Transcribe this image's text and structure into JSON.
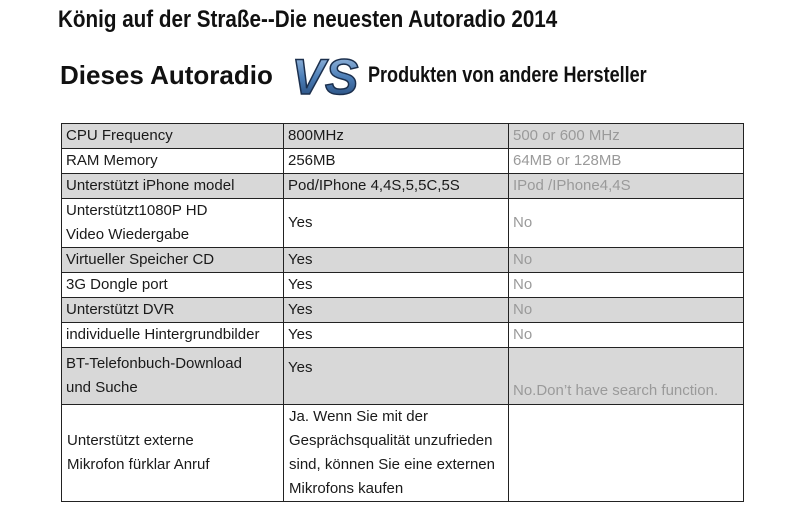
{
  "header": {
    "title": "König auf der Straße--Die neuesten Autoradio  2014",
    "left_label": "Dieses Autoradio",
    "vs_logo": "VS",
    "right_label": "Produkten von andere Hersteller"
  },
  "rows": [
    {
      "feature": "CPU Frequency",
      "ours": "800MHz",
      "others": "500 or 600 MHz"
    },
    {
      "feature": "RAM Memory",
      "ours": "256MB",
      "others": "64MB or 128MB"
    },
    {
      "feature": "Unterstützt iPhone model",
      "ours": "Pod/IPhone 4,4S,5,5C,5S",
      "others": "IPod /IPhone4,4S"
    },
    {
      "feature_line1": "Unterstützt1080P HD",
      "feature_line2": "Video Wiedergabe",
      "ours": "Yes",
      "others": "No"
    },
    {
      "feature": "Virtueller Speicher CD",
      "ours": "Yes",
      "others": "No"
    },
    {
      "feature": "3G Dongle port",
      "ours": "Yes",
      "others": "No"
    },
    {
      "feature": "Unterstützt DVR",
      "ours": "Yes",
      "others": "No"
    },
    {
      "feature": "individuelle Hintergrundbilder",
      "ours": "Yes",
      "others": "No"
    },
    {
      "feature_line1": "BT-Telefonbuch-Download",
      "feature_line2": "und Suche",
      "ours": "Yes",
      "others": "No.Don’t have search function."
    },
    {
      "feature_line1": "Unterstützt  externe",
      "feature_line2": "Mikrofon fürklar Anruf",
      "ours_lines": [
        "Ja. Wenn Sie mit der",
        "Gesprächsqualität unzufrieden",
        "sind, können Sie eine externen",
        "Mikrofons kaufen"
      ],
      "others": ""
    }
  ]
}
